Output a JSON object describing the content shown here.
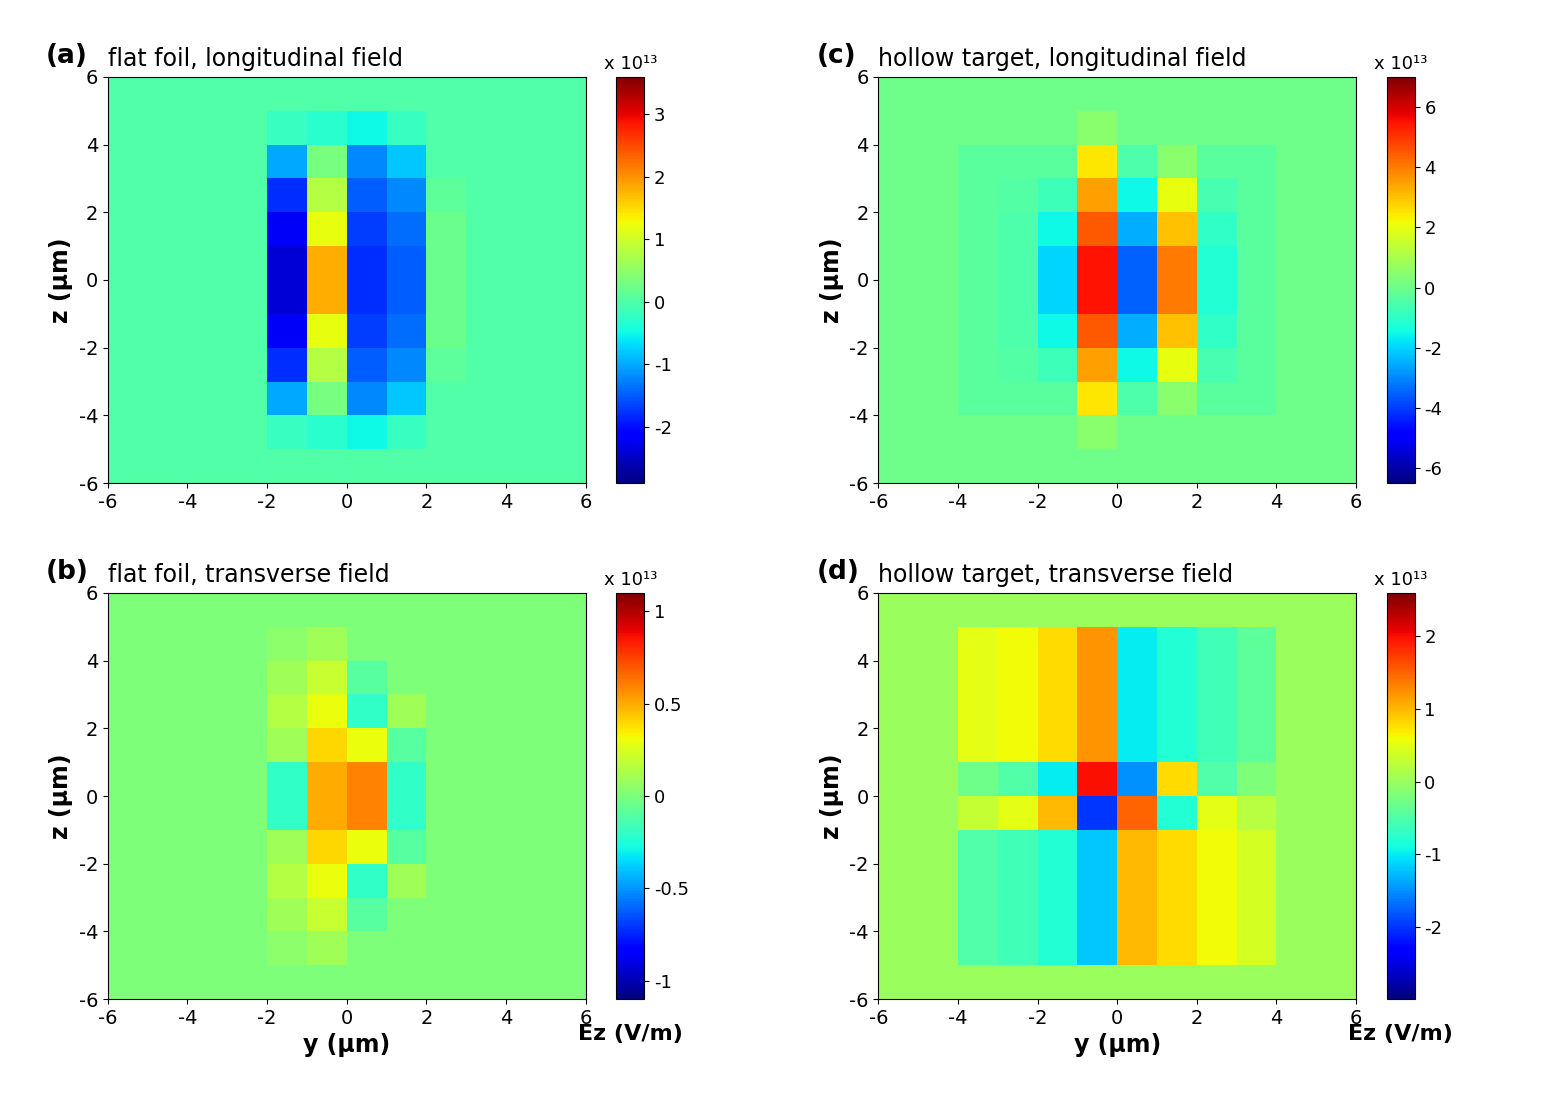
{
  "chart_data": [
    {
      "type": "heatmap",
      "panel_label": "(a)",
      "title": "flat foil, longitudinal field",
      "ylabel": "z (μm)",
      "xlim": [
        -6,
        6
      ],
      "ylim": [
        -6,
        6
      ],
      "xticks": [
        -6,
        -4,
        -2,
        0,
        2,
        4,
        6
      ],
      "yticks": [
        -6,
        -4,
        -2,
        0,
        2,
        4,
        6
      ],
      "y_edges": [
        -6,
        -5,
        -4,
        -3,
        -2,
        -1,
        0,
        1,
        2,
        3,
        4,
        5,
        6
      ],
      "z_edges": [
        -6,
        -5,
        -4,
        -3,
        -2,
        -1,
        0,
        1,
        2,
        3,
        4,
        5,
        6
      ],
      "cells": [
        [
          0,
          0,
          0,
          0,
          0,
          0,
          0,
          0,
          0,
          0,
          0,
          0
        ],
        [
          0,
          0,
          0,
          0,
          -0.2,
          -0.3,
          -0.5,
          -0.2,
          0,
          0,
          0,
          0
        ],
        [
          0,
          0,
          0,
          0,
          -1.0,
          0.3,
          -1.2,
          -0.8,
          0,
          0,
          0,
          0
        ],
        [
          0,
          0,
          0,
          0,
          -1.8,
          0.8,
          -1.5,
          -1.2,
          0.1,
          0,
          0,
          0
        ],
        [
          0,
          0,
          0,
          0,
          -2.2,
          1.2,
          -1.7,
          -1.4,
          0.2,
          0,
          0,
          0
        ],
        [
          0,
          0,
          0,
          0,
          -2.4,
          1.8,
          -1.8,
          -1.5,
          0.2,
          0,
          0,
          0
        ],
        [
          0,
          0,
          0,
          0,
          -2.4,
          1.8,
          -1.8,
          -1.5,
          0.2,
          0,
          0,
          0
        ],
        [
          0,
          0,
          0,
          0,
          -2.2,
          1.2,
          -1.7,
          -1.4,
          0.2,
          0,
          0,
          0
        ],
        [
          0,
          0,
          0,
          0,
          -1.8,
          0.8,
          -1.5,
          -1.2,
          0.1,
          0,
          0,
          0
        ],
        [
          0,
          0,
          0,
          0,
          -1.0,
          0.3,
          -1.2,
          -0.8,
          0,
          0,
          0,
          0
        ],
        [
          0,
          0,
          0,
          0,
          -0.2,
          -0.3,
          -0.5,
          -0.2,
          0,
          0,
          0,
          0
        ],
        [
          0,
          0,
          0,
          0,
          0,
          0,
          0,
          0,
          0,
          0,
          0,
          0
        ]
      ],
      "colorbar_range": [
        -2.9,
        3.6
      ],
      "colorbar_ticks": [
        -2,
        -1,
        0,
        1,
        2,
        3
      ],
      "colorbar_multiplier": "x 10¹³"
    },
    {
      "type": "heatmap",
      "panel_label": "(b)",
      "title": "flat foil, transverse field",
      "xlabel": "y (μm)",
      "ylabel": "z (μm)",
      "xlim": [
        -6,
        6
      ],
      "ylim": [
        -6,
        6
      ],
      "xticks": [
        -6,
        -4,
        -2,
        0,
        2,
        4,
        6
      ],
      "yticks": [
        -6,
        -4,
        -2,
        0,
        2,
        4,
        6
      ],
      "y_edges": [
        -6,
        -5,
        -4,
        -3,
        -2,
        -1,
        0,
        1,
        2,
        3,
        4,
        5,
        6
      ],
      "z_edges": [
        -6,
        -5,
        -4,
        -3,
        -2,
        -1,
        0,
        1,
        2,
        3,
        4,
        5,
        6
      ],
      "cells": [
        [
          0,
          0,
          0,
          0,
          0,
          0,
          0,
          0,
          0,
          0,
          0,
          0
        ],
        [
          0,
          0,
          0,
          0,
          0.05,
          0.1,
          0,
          0,
          0,
          0,
          0,
          0
        ],
        [
          0,
          0,
          0,
          0,
          0.1,
          0.2,
          -0.1,
          0,
          0,
          0,
          0,
          0
        ],
        [
          0,
          0,
          0,
          0,
          0.15,
          0.3,
          -0.2,
          0.1,
          0,
          0,
          0,
          0
        ],
        [
          0,
          0,
          0,
          0,
          0.1,
          0.4,
          0.3,
          -0.1,
          0,
          0,
          0,
          0
        ],
        [
          0,
          0,
          0,
          0,
          -0.2,
          0.5,
          0.6,
          -0.2,
          0,
          0,
          0,
          0
        ],
        [
          0,
          0,
          0,
          0,
          -0.2,
          0.5,
          0.6,
          -0.2,
          0,
          0,
          0,
          0
        ],
        [
          0,
          0,
          0,
          0,
          0.1,
          0.4,
          0.3,
          -0.1,
          0,
          0,
          0,
          0
        ],
        [
          0,
          0,
          0,
          0,
          0.15,
          0.3,
          -0.2,
          0.1,
          0,
          0,
          0,
          0
        ],
        [
          0,
          0,
          0,
          0,
          0.1,
          0.2,
          -0.1,
          0,
          0,
          0,
          0,
          0
        ],
        [
          0,
          0,
          0,
          0,
          0.05,
          0.1,
          0,
          0,
          0,
          0,
          0,
          0
        ],
        [
          0,
          0,
          0,
          0,
          0,
          0,
          0,
          0,
          0,
          0,
          0,
          0
        ]
      ],
      "colorbar_range": [
        -1.1,
        1.1
      ],
      "colorbar_ticks": [
        -1,
        -0.5,
        0,
        0.5,
        1
      ],
      "colorbar_multiplier": "x 10¹³",
      "colorbar_label": "Ez (V/m)"
    },
    {
      "type": "heatmap",
      "panel_label": "(c)",
      "title": "hollow target, longitudinal field",
      "ylabel": "z (μm)",
      "xlim": [
        -6,
        6
      ],
      "ylim": [
        -6,
        6
      ],
      "xticks": [
        -6,
        -4,
        -2,
        0,
        2,
        4,
        6
      ],
      "yticks": [
        -6,
        -4,
        -2,
        0,
        2,
        4,
        6
      ],
      "y_edges": [
        -6,
        -5,
        -4,
        -3,
        -2,
        -1,
        0,
        1,
        2,
        3,
        4,
        5,
        6
      ],
      "z_edges": [
        -6,
        -5,
        -4,
        -3,
        -2,
        -1,
        0,
        1,
        2,
        3,
        4,
        5,
        6
      ],
      "cells": [
        [
          0,
          0,
          0,
          0,
          0,
          0,
          0,
          0,
          0,
          0,
          0,
          0
        ],
        [
          0,
          0,
          0,
          0,
          0,
          0.5,
          0,
          0,
          0,
          0,
          0,
          0
        ],
        [
          0,
          0,
          -0.3,
          -0.3,
          -0.3,
          2.5,
          -0.5,
          0.5,
          -0.3,
          -0.3,
          0,
          0
        ],
        [
          0,
          0,
          -0.3,
          -0.4,
          -0.8,
          3.5,
          -1.5,
          2.0,
          -0.6,
          -0.3,
          0,
          0
        ],
        [
          0,
          0,
          -0.3,
          -0.5,
          -1.5,
          4.5,
          -2.5,
          3.0,
          -1.0,
          -0.3,
          0,
          0
        ],
        [
          0,
          0,
          -0.3,
          -0.5,
          -2.0,
          5.5,
          -3.5,
          4.0,
          -1.2,
          -0.3,
          0,
          0
        ],
        [
          0,
          0,
          -0.3,
          -0.5,
          -2.0,
          5.5,
          -3.5,
          4.0,
          -1.2,
          -0.3,
          0,
          0
        ],
        [
          0,
          0,
          -0.3,
          -0.5,
          -1.5,
          4.5,
          -2.5,
          3.0,
          -1.0,
          -0.3,
          0,
          0
        ],
        [
          0,
          0,
          -0.3,
          -0.4,
          -0.8,
          3.5,
          -1.5,
          2.0,
          -0.6,
          -0.3,
          0,
          0
        ],
        [
          0,
          0,
          -0.3,
          -0.3,
          -0.3,
          2.5,
          -0.5,
          0.5,
          -0.3,
          -0.3,
          0,
          0
        ],
        [
          0,
          0,
          0,
          0,
          0,
          0.5,
          0,
          0,
          0,
          0,
          0,
          0
        ],
        [
          0,
          0,
          0,
          0,
          0,
          0,
          0,
          0,
          0,
          0,
          0,
          0
        ]
      ],
      "colorbar_range": [
        -6.5,
        7.0
      ],
      "colorbar_ticks": [
        -6,
        -4,
        -2,
        0,
        2,
        4,
        6
      ],
      "colorbar_multiplier": "x 10¹³"
    },
    {
      "type": "heatmap",
      "panel_label": "(d)",
      "title": "hollow target, transverse field",
      "xlabel": "y (μm)",
      "ylabel": "z (μm)",
      "xlim": [
        -6,
        6
      ],
      "ylim": [
        -6,
        6
      ],
      "xticks": [
        -6,
        -4,
        -2,
        0,
        2,
        4,
        6
      ],
      "yticks": [
        -6,
        -4,
        -2,
        0,
        2,
        4,
        6
      ],
      "y_edges": [
        -6,
        -5,
        -4,
        -3,
        -2,
        -1,
        0,
        1,
        2,
        3,
        4,
        5,
        6
      ],
      "z_edges": [
        -6,
        -5,
        -4,
        -3,
        -2,
        -1,
        0,
        1,
        2,
        3,
        4,
        5,
        6
      ],
      "cells": [
        [
          0,
          0,
          0,
          0,
          0,
          0,
          0,
          0,
          0,
          0,
          0,
          0
        ],
        [
          0,
          0,
          -0.5,
          -0.6,
          -0.8,
          -1.2,
          1.0,
          0.8,
          0.6,
          0.4,
          0,
          0
        ],
        [
          0,
          0,
          -0.5,
          -0.6,
          -0.8,
          -1.2,
          1.0,
          0.8,
          0.6,
          0.4,
          0,
          0
        ],
        [
          0,
          0,
          -0.5,
          -0.6,
          -0.8,
          -1.2,
          1.0,
          0.8,
          0.6,
          0.4,
          0,
          0
        ],
        [
          0,
          0,
          -0.5,
          -0.6,
          -0.8,
          -1.2,
          1.0,
          0.8,
          0.6,
          0.4,
          0,
          0
        ],
        [
          0,
          0,
          0.3,
          0.5,
          1.0,
          -2.0,
          1.5,
          -0.8,
          0.5,
          0.2,
          0,
          0
        ],
        [
          0,
          0,
          -0.3,
          -0.5,
          -1.0,
          2.0,
          -1.5,
          0.8,
          -0.5,
          -0.2,
          0,
          0
        ],
        [
          0,
          0,
          0.5,
          0.6,
          0.8,
          1.2,
          -1.0,
          -0.8,
          -0.6,
          -0.4,
          0,
          0
        ],
        [
          0,
          0,
          0.5,
          0.6,
          0.8,
          1.2,
          -1.0,
          -0.8,
          -0.6,
          -0.4,
          0,
          0
        ],
        [
          0,
          0,
          0.5,
          0.6,
          0.8,
          1.2,
          -1.0,
          -0.8,
          -0.6,
          -0.4,
          0,
          0
        ],
        [
          0,
          0,
          0.5,
          0.6,
          0.8,
          1.2,
          -1.0,
          -0.8,
          -0.6,
          -0.4,
          0,
          0
        ],
        [
          0,
          0,
          0,
          0,
          0,
          0,
          0,
          0,
          0,
          0,
          0,
          0
        ]
      ],
      "colorbar_range": [
        -3.0,
        2.6
      ],
      "colorbar_ticks": [
        -2,
        -1,
        0,
        1,
        2
      ],
      "colorbar_multiplier": "x 10¹³",
      "colorbar_label": "Ez (V/m)"
    }
  ]
}
